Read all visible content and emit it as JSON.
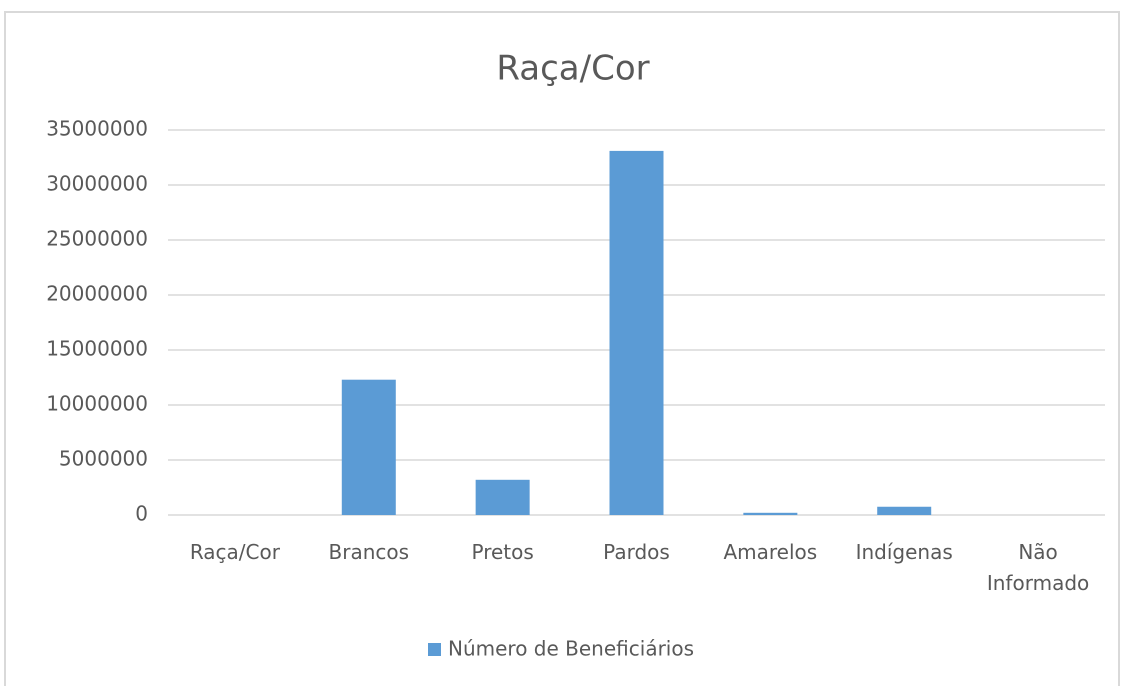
{
  "chart_data": {
    "type": "bar",
    "title": "Raça/Cor",
    "categories": [
      "Raça/Cor",
      "Brancos",
      "Pretos",
      "Pardos",
      "Amarelos",
      "Indígenas",
      "Não Informado"
    ],
    "series": [
      {
        "name": "Número de Beneficiários",
        "color": "#5b9bd5",
        "values": [
          null,
          12300000,
          3200000,
          33100000,
          200000,
          750000,
          0
        ]
      }
    ],
    "ylim": [
      0,
      35000000
    ],
    "yticks": [
      0,
      5000000,
      10000000,
      15000000,
      20000000,
      25000000,
      30000000,
      35000000
    ],
    "grid": true,
    "legend": "bottom"
  }
}
